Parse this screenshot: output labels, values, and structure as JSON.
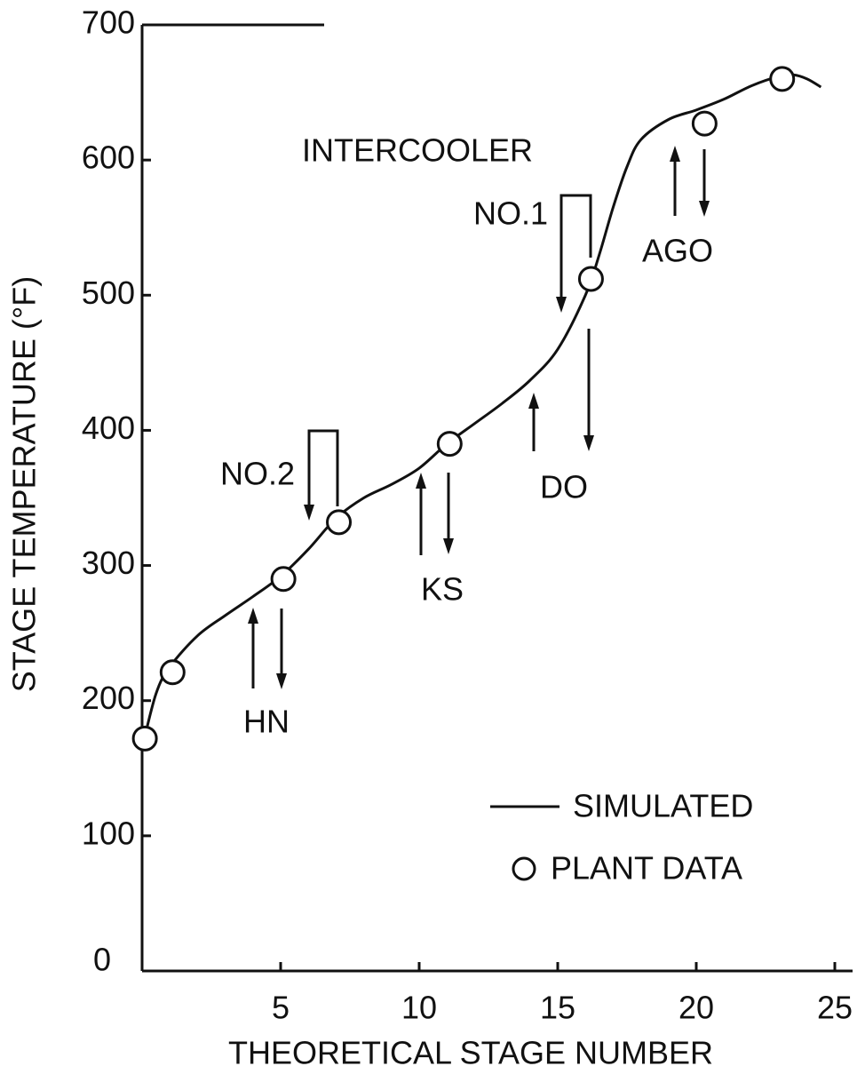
{
  "chart_data": {
    "type": "line",
    "x_label": "THEORETICAL STAGE NUMBER",
    "y_label": "STAGE TEMPERATURE (°F)",
    "xlim": [
      0,
      25
    ],
    "xticks": [
      5,
      10,
      15,
      20,
      25
    ],
    "ylim": [
      0,
      700
    ],
    "yticks": [
      0,
      100,
      200,
      300,
      400,
      500,
      600,
      700
    ],
    "color": "#111111",
    "series": [
      {
        "name": "SIMULATED",
        "type": "line",
        "color": "#111111",
        "x": [
          0,
          0.5,
          1,
          2,
          3,
          4,
          5,
          6,
          7,
          8,
          9,
          10,
          11,
          12,
          13,
          14,
          15,
          16,
          16.5,
          17,
          17.5,
          18,
          19,
          20,
          21,
          22,
          23,
          23.5,
          24,
          24.5
        ],
        "values": [
          165,
          205,
          225,
          248,
          263,
          277,
          292,
          312,
          335,
          350,
          360,
          372,
          390,
          405,
          420,
          437,
          460,
          500,
          530,
          565,
          595,
          615,
          630,
          637,
          645,
          655,
          662,
          663,
          660,
          654
        ]
      },
      {
        "name": "PLANT DATA",
        "type": "scatter",
        "color": "#111111",
        "x": [
          0.1,
          1.1,
          5.1,
          7.1,
          11.1,
          16.2,
          20.3,
          23.1
        ],
        "values": [
          172,
          221,
          290,
          332,
          390,
          512,
          627,
          660
        ]
      }
    ],
    "annotations": [
      "INTERCOOLER",
      "NO.1",
      "NO.2",
      "HN",
      "KS",
      "DO",
      "AGO"
    ]
  }
}
